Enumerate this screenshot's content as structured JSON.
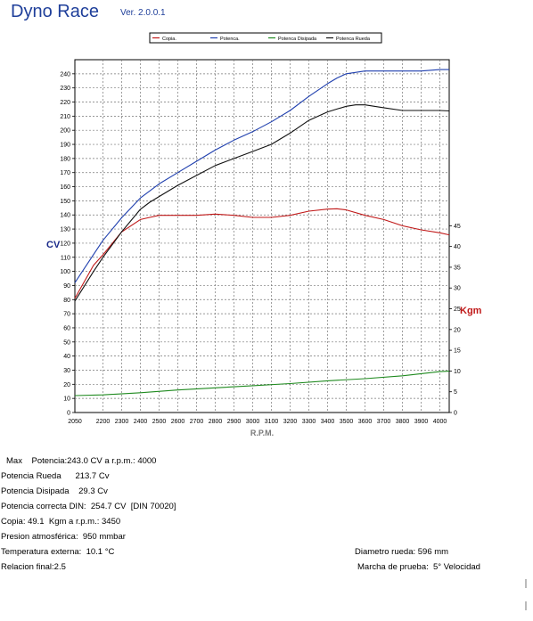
{
  "header": {
    "title": "Dyno Race",
    "version": "Ver. 2.0.0.1"
  },
  "chart_data": {
    "type": "line",
    "x_label": "R.P.M.",
    "y_left_label": "CV",
    "y_right_label": "Kgm",
    "grid": true,
    "legend_position": "top",
    "x_ticks": [
      2050,
      2200,
      2300,
      2400,
      2500,
      2600,
      2700,
      2800,
      2900,
      3000,
      3100,
      3200,
      3300,
      3400,
      3500,
      3600,
      3700,
      3800,
      3900,
      4000
    ],
    "xlim": [
      2050,
      4050
    ],
    "y_left_ticks": [
      0,
      10,
      20,
      30,
      40,
      50,
      60,
      70,
      80,
      90,
      100,
      110,
      120,
      130,
      140,
      150,
      160,
      170,
      180,
      190,
      200,
      210,
      220,
      230,
      240
    ],
    "ylim_left": [
      0,
      250
    ],
    "y_right_ticks": [
      0,
      5,
      10,
      15,
      20,
      25,
      30,
      35,
      40,
      45
    ],
    "ylim_right": [
      0,
      85
    ],
    "series": [
      {
        "name": "Copia.",
        "axis": "right",
        "color": "#c01818",
        "x": [
          2050,
          2150,
          2200,
          2300,
          2400,
          2450,
          2500,
          2600,
          2700,
          2800,
          2900,
          3000,
          3100,
          3200,
          3300,
          3400,
          3450,
          3500,
          3600,
          3700,
          3800,
          3900,
          4000,
          4050
        ],
        "y": [
          27.5,
          35.5,
          38,
          43.5,
          46.5,
          47,
          47.5,
          47.5,
          47.5,
          47.8,
          47.5,
          47,
          47,
          47.5,
          48.5,
          49,
          49.1,
          48.8,
          47.5,
          46.5,
          45,
          44,
          43.3,
          42.8
        ]
      },
      {
        "name": "Potenca.",
        "axis": "left",
        "color": "#1f3fae",
        "x": [
          2050,
          2150,
          2200,
          2300,
          2400,
          2450,
          2500,
          2600,
          2700,
          2800,
          2900,
          3000,
          3100,
          3200,
          3300,
          3400,
          3450,
          3500,
          3600,
          3700,
          3800,
          3900,
          4000,
          4050
        ],
        "y": [
          92,
          112,
          122,
          138,
          152,
          157,
          162,
          170,
          178,
          186,
          193,
          199,
          206,
          214,
          224,
          233,
          237,
          240,
          242,
          242,
          242,
          242,
          243,
          243
        ]
      },
      {
        "name": "Potenca Disipada",
        "axis": "left",
        "color": "#1f8a1f",
        "x": [
          2050,
          2200,
          2400,
          2600,
          2800,
          3000,
          3200,
          3400,
          3600,
          3800,
          4000,
          4050
        ],
        "y": [
          12,
          12.5,
          14,
          16,
          17.5,
          19,
          20.5,
          22.5,
          24,
          26,
          29,
          29.3
        ]
      },
      {
        "name": "Potenca Rueda",
        "axis": "left",
        "color": "#111111",
        "x": [
          2050,
          2150,
          2200,
          2300,
          2400,
          2450,
          2500,
          2600,
          2700,
          2800,
          2900,
          3000,
          3100,
          3200,
          3300,
          3400,
          3450,
          3500,
          3550,
          3600,
          3700,
          3800,
          3900,
          4000,
          4050
        ],
        "y": [
          79,
          100,
          110,
          128,
          144,
          149,
          153,
          161,
          168,
          175,
          180,
          185,
          190,
          198,
          207,
          213,
          215,
          217,
          218,
          218,
          216,
          214,
          214,
          214,
          213.7
        ]
      }
    ]
  },
  "info": {
    "max": "Max    Potencia:243.0 CV a r.p.m.: 4000",
    "rueda": "Potencia Rueda      213.7 Cv",
    "disipada": "Potencia Disipada    29.3 Cv",
    "din": "Potencia correcta DIN:  254.7 CV  [DIN 70020]",
    "copia": "Copia: 49.1  Kgm a r.p.m.: 3450",
    "presion": "Presion atmosférica:  950 mmbar",
    "temperatura": "Temperatura externa:  10.1 °C",
    "relacion": "Relacion final:2.5",
    "diametro": "Diametro rueda: 596 mm",
    "marcha": "Marcha de prueba:  5° Velocidad"
  }
}
